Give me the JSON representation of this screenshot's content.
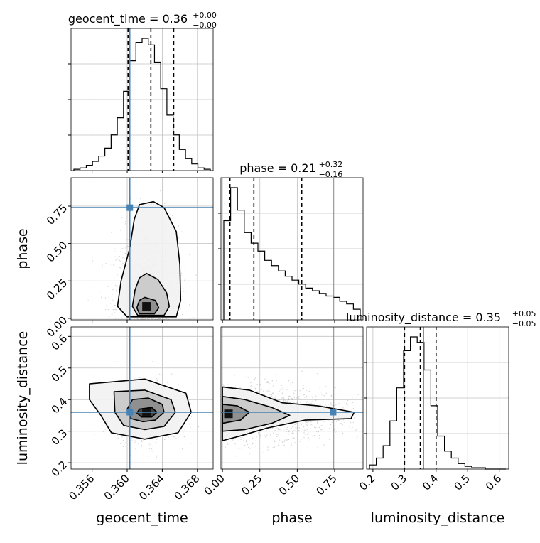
{
  "chart_data": {
    "type": "corner",
    "parameters": [
      "geocent_time",
      "phase",
      "luminosity_distance"
    ],
    "titles": [
      {
        "param": "geocent_time",
        "text": "geocent_time = 0.36",
        "sup": "+0.00",
        "sub": "−0.00"
      },
      {
        "param": "phase",
        "text": "phase = 0.21",
        "sup": "+0.32",
        "sub": "−0.16"
      },
      {
        "param": "luminosity_distance",
        "text": "luminosity_distance = 0.35",
        "sup": "+0.05",
        "sub": "−0.05"
      }
    ],
    "axis_labels": {
      "x": [
        "geocent_time",
        "phase",
        "luminosity_distance"
      ],
      "y": [
        "phase",
        "luminosity_distance"
      ]
    },
    "ranges": {
      "geocent_time": [
        0.3536,
        0.3698
      ],
      "phase": [
        -0.01,
        0.94
      ],
      "luminosity_distance": [
        0.18,
        0.63
      ]
    },
    "ticks": {
      "geocent_time": [
        0.356,
        0.36,
        0.364,
        0.368
      ],
      "geocent_time_labels": [
        "0.356",
        "0.360",
        "0.364",
        "0.368"
      ],
      "phase": [
        0.0,
        0.25,
        0.5,
        0.75
      ],
      "phase_labels": [
        "0.00",
        "0.25",
        "0.50",
        "0.75"
      ],
      "luminosity_distance": [
        0.2,
        0.3,
        0.4,
        0.5,
        0.6
      ],
      "luminosity_distance_labels": [
        "0.2",
        "0.3",
        "0.4",
        "0.5",
        "0.6"
      ]
    },
    "truths": {
      "geocent_time": 0.3603,
      "phase": 0.74,
      "luminosity_distance": 0.36
    },
    "quantiles": {
      "geocent_time": [
        0.3601,
        0.3627,
        0.3653
      ],
      "phase": [
        0.05,
        0.21,
        0.53
      ],
      "luminosity_distance": [
        0.3,
        0.35,
        0.4
      ]
    },
    "hist": {
      "geocent_time": [
        1,
        2,
        4,
        7,
        11,
        17,
        27,
        40,
        60,
        83,
        97,
        100,
        95,
        82,
        62,
        42,
        27,
        16,
        9,
        5,
        2,
        1
      ],
      "phase": [
        75,
        100,
        83,
        66,
        58,
        52,
        45,
        41,
        37,
        33,
        30,
        27,
        24,
        22,
        20,
        18,
        17,
        14,
        12,
        8
      ],
      "luminosity_distance": [
        3,
        8,
        17,
        35,
        59,
        86,
        96,
        92,
        72,
        46,
        24,
        13,
        8,
        4,
        2,
        1,
        1,
        0,
        0,
        0
      ]
    },
    "contours": {
      "phase_vs_geocent_time": [
        [
          [
            0.363,
            0.78
          ],
          [
            0.3642,
            0.74
          ],
          [
            0.3656,
            0.58
          ],
          [
            0.366,
            0.36
          ],
          [
            0.3661,
            0.12
          ],
          [
            0.3656,
            0.01
          ],
          [
            0.36,
            0.01
          ],
          [
            0.3589,
            0.08
          ],
          [
            0.3593,
            0.25
          ],
          [
            0.3603,
            0.47
          ],
          [
            0.3608,
            0.66
          ],
          [
            0.3614,
            0.76
          ]
        ],
        [
          [
            0.3622,
            0.3
          ],
          [
            0.3635,
            0.26
          ],
          [
            0.3645,
            0.17
          ],
          [
            0.3648,
            0.08
          ],
          [
            0.3642,
            0.02
          ],
          [
            0.3612,
            0.02
          ],
          [
            0.3606,
            0.08
          ],
          [
            0.3609,
            0.19
          ],
          [
            0.3614,
            0.27
          ]
        ],
        [
          [
            0.362,
            0.14
          ],
          [
            0.3632,
            0.12
          ],
          [
            0.3636,
            0.07
          ],
          [
            0.3631,
            0.03
          ],
          [
            0.3614,
            0.03
          ],
          [
            0.3611,
            0.07
          ],
          [
            0.3614,
            0.12
          ]
        ]
      ],
      "luminosity_distance_vs_geocent_time": [
        [
          [
            0.3557,
            0.45
          ],
          [
            0.362,
            0.465
          ],
          [
            0.3667,
            0.42
          ],
          [
            0.3673,
            0.36
          ],
          [
            0.3658,
            0.295
          ],
          [
            0.362,
            0.275
          ],
          [
            0.3582,
            0.295
          ],
          [
            0.357,
            0.35
          ],
          [
            0.3557,
            0.4
          ]
        ],
        [
          [
            0.3585,
            0.425
          ],
          [
            0.362,
            0.43
          ],
          [
            0.365,
            0.4
          ],
          [
            0.3655,
            0.36
          ],
          [
            0.3642,
            0.315
          ],
          [
            0.362,
            0.305
          ],
          [
            0.3596,
            0.318
          ],
          [
            0.3586,
            0.36
          ]
        ],
        [
          [
            0.3606,
            0.4
          ],
          [
            0.3624,
            0.405
          ],
          [
            0.364,
            0.385
          ],
          [
            0.3642,
            0.36
          ],
          [
            0.3632,
            0.335
          ],
          [
            0.3618,
            0.33
          ],
          [
            0.3604,
            0.34
          ],
          [
            0.36,
            0.37
          ]
        ],
        [
          [
            0.3614,
            0.37
          ],
          [
            0.3628,
            0.375
          ],
          [
            0.3634,
            0.36
          ],
          [
            0.3628,
            0.345
          ],
          [
            0.3616,
            0.345
          ],
          [
            0.3611,
            0.358
          ]
        ]
      ],
      "luminosity_distance_vs_phase": [
        [
          [
            0.0,
            0.44
          ],
          [
            0.18,
            0.43
          ],
          [
            0.4,
            0.39
          ],
          [
            0.64,
            0.38
          ],
          [
            0.88,
            0.36
          ],
          [
            0.86,
            0.34
          ],
          [
            0.55,
            0.335
          ],
          [
            0.3,
            0.31
          ],
          [
            0.12,
            0.285
          ],
          [
            0.0,
            0.27
          ]
        ],
        [
          [
            0.0,
            0.41
          ],
          [
            0.15,
            0.4
          ],
          [
            0.33,
            0.375
          ],
          [
            0.45,
            0.35
          ],
          [
            0.33,
            0.325
          ],
          [
            0.15,
            0.305
          ],
          [
            0.0,
            0.3
          ]
        ],
        [
          [
            0.0,
            0.385
          ],
          [
            0.1,
            0.38
          ],
          [
            0.18,
            0.36
          ],
          [
            0.12,
            0.335
          ],
          [
            0.0,
            0.325
          ]
        ]
      ]
    },
    "density_centers": {
      "phase_vs_geocent_time": [
        0.3622,
        0.08
      ],
      "luminosity_distance_vs_geocent_time": [
        0.3622,
        0.36
      ],
      "luminosity_distance_vs_phase": [
        0.04,
        0.355
      ]
    },
    "colors": {
      "truth": "#4682b4",
      "hist": "#000000",
      "grid": "#c0c0c0",
      "density": "#000000",
      "points": "#808080"
    },
    "grid": true
  }
}
